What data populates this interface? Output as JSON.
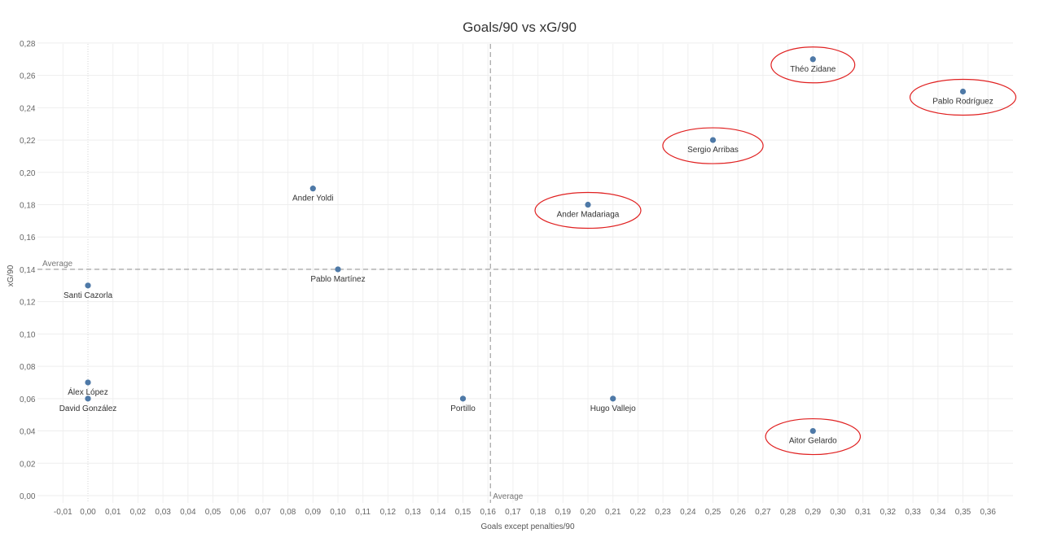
{
  "chart_data": {
    "type": "scatter",
    "title": "Goals/90 vs xG/90",
    "xlabel": "Goals except penalties/90",
    "ylabel": "xG/90",
    "xlim": [
      -0.015,
      0.37
    ],
    "ylim": [
      -0.005,
      0.285
    ],
    "x_ticks": [
      "-0,01",
      "0,00",
      "0,01",
      "0,02",
      "0,03",
      "0,04",
      "0,05",
      "0,06",
      "0,07",
      "0,08",
      "0,09",
      "0,10",
      "0,11",
      "0,12",
      "0,13",
      "0,14",
      "0,15",
      "0,16",
      "0,17",
      "0,18",
      "0,19",
      "0,20",
      "0,21",
      "0,22",
      "0,23",
      "0,24",
      "0,25",
      "0,26",
      "0,27",
      "0,28",
      "0,29",
      "0,30",
      "0,31",
      "0,32",
      "0,33",
      "0,34",
      "0,35",
      "0,36"
    ],
    "y_ticks": [
      "0,00",
      "0,02",
      "0,04",
      "0,06",
      "0,08",
      "0,10",
      "0,12",
      "0,14",
      "0,16",
      "0,18",
      "0,20",
      "0,22",
      "0,24",
      "0,26",
      "0,28"
    ],
    "grid": true,
    "point_color": "#4e79a7",
    "highlight_color": "#e02020",
    "reference_lines": {
      "x_average": 0.161,
      "y_average": 0.14,
      "x_label": "Average",
      "y_label": "Average"
    },
    "points": [
      {
        "name": "Théo Zidane",
        "x": 0.29,
        "y": 0.27,
        "highlight": true
      },
      {
        "name": "Pablo Rodríguez",
        "x": 0.35,
        "y": 0.25,
        "highlight": true
      },
      {
        "name": "Sergio Arribas",
        "x": 0.25,
        "y": 0.22,
        "highlight": true
      },
      {
        "name": "Ander Madariaga",
        "x": 0.2,
        "y": 0.18,
        "highlight": true
      },
      {
        "name": "Ander Yoldi",
        "x": 0.09,
        "y": 0.19,
        "highlight": false
      },
      {
        "name": "Pablo Martínez",
        "x": 0.1,
        "y": 0.14,
        "highlight": false
      },
      {
        "name": "Santi Cazorla",
        "x": 0.0,
        "y": 0.13,
        "highlight": false
      },
      {
        "name": "Álex López",
        "x": 0.0,
        "y": 0.07,
        "highlight": false
      },
      {
        "name": "David González",
        "x": 0.0,
        "y": 0.06,
        "highlight": false
      },
      {
        "name": "Portillo",
        "x": 0.15,
        "y": 0.06,
        "highlight": false
      },
      {
        "name": "Hugo Vallejo",
        "x": 0.21,
        "y": 0.06,
        "highlight": false
      },
      {
        "name": "Aitor Gelardo",
        "x": 0.29,
        "y": 0.04,
        "highlight": true
      }
    ]
  }
}
